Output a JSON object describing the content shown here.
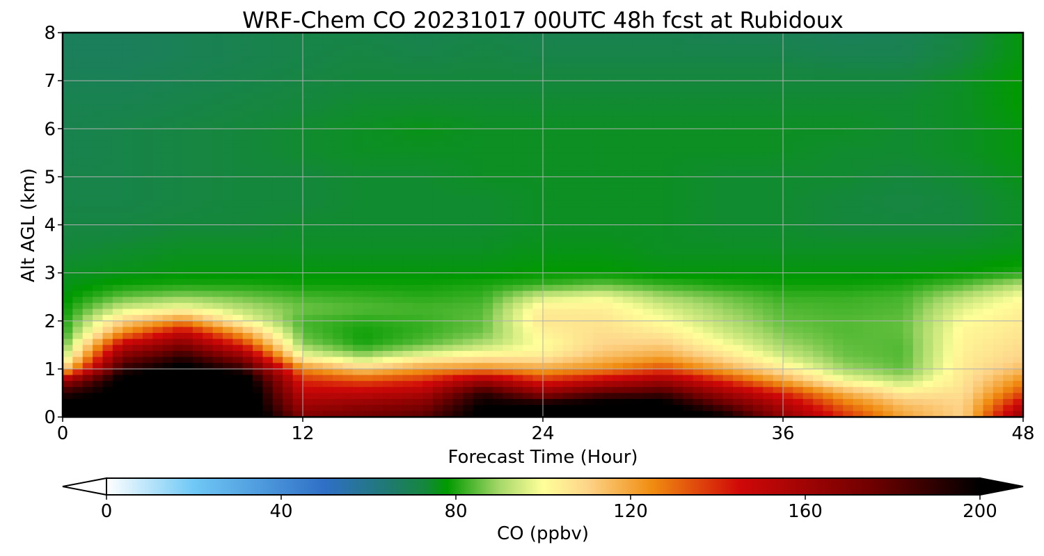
{
  "chart_data": {
    "type": "heatmap",
    "title": "WRF-Chem CO  20231017 00UTC 48h fcst at Rubidoux",
    "xlabel": "Forecast Time (Hour)",
    "ylabel": "Alt AGL (km)",
    "x_ticks": [
      "0",
      "12",
      "24",
      "36",
      "48"
    ],
    "y_ticks": [
      "0",
      "1",
      "2",
      "3",
      "4",
      "5",
      "6",
      "7",
      "8"
    ],
    "xlim": [
      0,
      48
    ],
    "ylim": [
      0,
      8
    ],
    "grid": true,
    "x": [
      0,
      3,
      6,
      9,
      12,
      15,
      18,
      21,
      24,
      27,
      30,
      33,
      36,
      39,
      42,
      45,
      48
    ],
    "y": [
      0,
      0.25,
      0.5,
      0.75,
      1,
      1.25,
      1.5,
      1.75,
      2,
      2.25,
      2.5,
      2.75,
      3,
      3.5,
      4,
      4.5,
      5,
      5.5,
      6,
      6.5,
      7,
      7.5,
      8
    ],
    "z": [
      [
        210,
        210,
        220,
        220,
        170,
        175,
        180,
        205,
        205,
        210,
        210,
        200,
        165,
        140,
        120,
        110,
        165
      ],
      [
        205,
        205,
        215,
        215,
        160,
        165,
        170,
        200,
        200,
        205,
        205,
        180,
        155,
        130,
        115,
        110,
        150
      ],
      [
        190,
        205,
        215,
        215,
        150,
        150,
        155,
        190,
        165,
        180,
        185,
        160,
        140,
        118,
        105,
        108,
        135
      ],
      [
        160,
        205,
        215,
        210,
        140,
        135,
        140,
        160,
        140,
        150,
        160,
        140,
        120,
        100,
        92,
        106,
        125
      ],
      [
        110,
        190,
        205,
        190,
        125,
        112,
        122,
        125,
        120,
        125,
        135,
        120,
        105,
        90,
        85,
        105,
        115
      ],
      [
        92,
        170,
        190,
        165,
        100,
        90,
        100,
        105,
        105,
        115,
        120,
        108,
        95,
        86,
        84,
        104,
        110
      ],
      [
        84,
        150,
        170,
        140,
        88,
        80,
        85,
        92,
        100,
        110,
        112,
        100,
        90,
        85,
        84,
        103,
        108
      ],
      [
        80,
        125,
        150,
        120,
        84,
        79,
        82,
        86,
        103,
        108,
        105,
        95,
        87,
        84,
        85,
        102,
        106
      ],
      [
        79,
        110,
        125,
        100,
        83,
        81,
        82,
        85,
        106,
        106,
        100,
        92,
        85,
        84,
        85,
        100,
        105
      ],
      [
        78,
        95,
        100,
        92,
        86,
        84,
        83,
        84,
        104,
        104,
        96,
        89,
        84,
        83,
        84,
        97,
        103
      ],
      [
        77,
        85,
        88,
        86,
        83,
        82,
        81,
        82,
        95,
        98,
        90,
        86,
        82,
        82,
        83,
        92,
        100
      ],
      [
        76,
        79,
        80,
        80,
        79,
        79,
        79,
        80,
        82,
        85,
        82,
        80,
        79,
        79,
        80,
        84,
        92
      ],
      [
        75,
        76,
        77,
        77,
        77,
        77,
        77,
        77,
        78,
        78,
        77,
        77,
        77,
        77,
        77,
        78,
        80
      ],
      [
        73,
        74,
        75,
        75,
        75,
        75,
        75,
        75,
        76,
        76,
        75,
        75,
        75,
        75,
        75,
        75,
        76
      ],
      [
        72,
        72,
        73,
        73,
        74,
        74,
        74,
        74,
        75,
        75,
        75,
        74,
        74,
        73,
        73,
        73,
        75
      ],
      [
        71,
        71,
        72,
        73,
        73,
        74,
        74,
        74,
        75,
        75,
        75,
        74,
        74,
        73,
        72,
        73,
        75
      ],
      [
        71,
        71,
        72,
        73,
        73,
        74,
        74,
        75,
        75,
        75,
        75,
        74,
        74,
        74,
        73,
        74,
        76
      ],
      [
        70,
        71,
        72,
        73,
        74,
        75,
        75,
        75,
        75,
        75,
        75,
        75,
        75,
        74,
        74,
        75,
        77
      ],
      [
        70,
        71,
        72,
        73,
        74,
        75,
        76,
        75,
        75,
        75,
        75,
        75,
        75,
        75,
        74,
        75,
        77
      ],
      [
        70,
        70,
        71,
        72,
        73,
        74,
        74,
        74,
        74,
        74,
        74,
        74,
        74,
        74,
        74,
        75,
        78
      ],
      [
        69,
        69,
        70,
        71,
        72,
        73,
        73,
        73,
        73,
        73,
        73,
        73,
        73,
        73,
        73,
        75,
        78
      ],
      [
        68,
        68,
        69,
        70,
        71,
        72,
        71,
        72,
        71,
        71,
        71,
        71,
        71,
        70,
        70,
        73,
        77
      ],
      [
        68,
        68,
        69,
        70,
        71,
        71,
        70,
        71,
        70,
        70,
        70,
        69,
        69,
        68,
        69,
        72,
        77
      ]
    ],
    "colorbar": {
      "label": "CO  (ppbv)",
      "min": 0,
      "max": 200,
      "ticks": [
        "0",
        "40",
        "80",
        "120",
        "160",
        "200"
      ],
      "extend": "both",
      "stops": [
        {
          "v": 0,
          "c": "#ffffff"
        },
        {
          "v": 20,
          "c": "#6fc8f5"
        },
        {
          "v": 50,
          "c": "#2f6fc6"
        },
        {
          "v": 65,
          "c": "#1f7a6e"
        },
        {
          "v": 73,
          "c": "#15873c"
        },
        {
          "v": 78,
          "c": "#009a00"
        },
        {
          "v": 90,
          "c": "#a6d869"
        },
        {
          "v": 100,
          "c": "#ffff9a"
        },
        {
          "v": 110,
          "c": "#fdd58a"
        },
        {
          "v": 125,
          "c": "#f08c10"
        },
        {
          "v": 145,
          "c": "#d00808"
        },
        {
          "v": 175,
          "c": "#700000"
        },
        {
          "v": 200,
          "c": "#000000"
        }
      ]
    }
  }
}
